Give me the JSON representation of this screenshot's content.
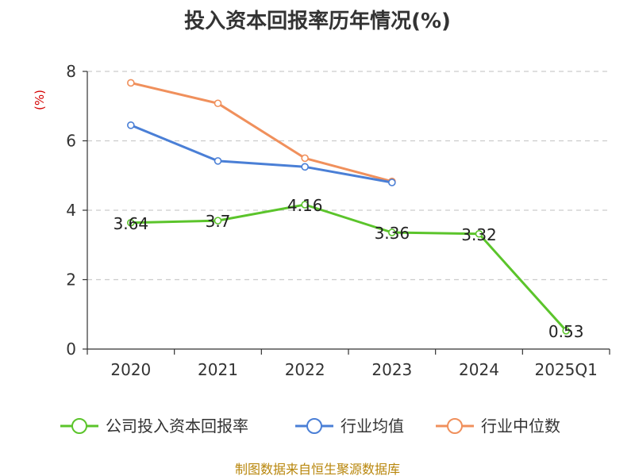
{
  "title": "投入资本回报率历年情况(%)",
  "source": "制图数据来自恒生聚源数据库",
  "chart_data": {
    "type": "line",
    "title": "投入资本回报率历年情况(%)",
    "xlabel": "",
    "ylabel": "(%)",
    "categories": [
      "2020",
      "2021",
      "2022",
      "2023",
      "2024",
      "2025Q1"
    ],
    "ylim": [
      0,
      8
    ],
    "yticks": [
      0,
      2,
      4,
      6,
      8
    ],
    "grid": true,
    "legend_position": "bottom",
    "series": [
      {
        "name": "公司投入资本回报率",
        "color": "#5bc42b",
        "values": [
          3.64,
          3.7,
          4.16,
          3.36,
          3.32,
          0.53
        ],
        "labels": [
          "3.64",
          "3.7",
          "4.16",
          "3.36",
          "3.32",
          "0.53"
        ]
      },
      {
        "name": "行业均值",
        "color": "#4a7fd6",
        "values": [
          6.45,
          5.42,
          5.25,
          4.8,
          null,
          null
        ]
      },
      {
        "name": "行业中位数",
        "color": "#f0905c",
        "values": [
          7.67,
          7.08,
          5.5,
          4.83,
          null,
          null
        ]
      }
    ]
  }
}
